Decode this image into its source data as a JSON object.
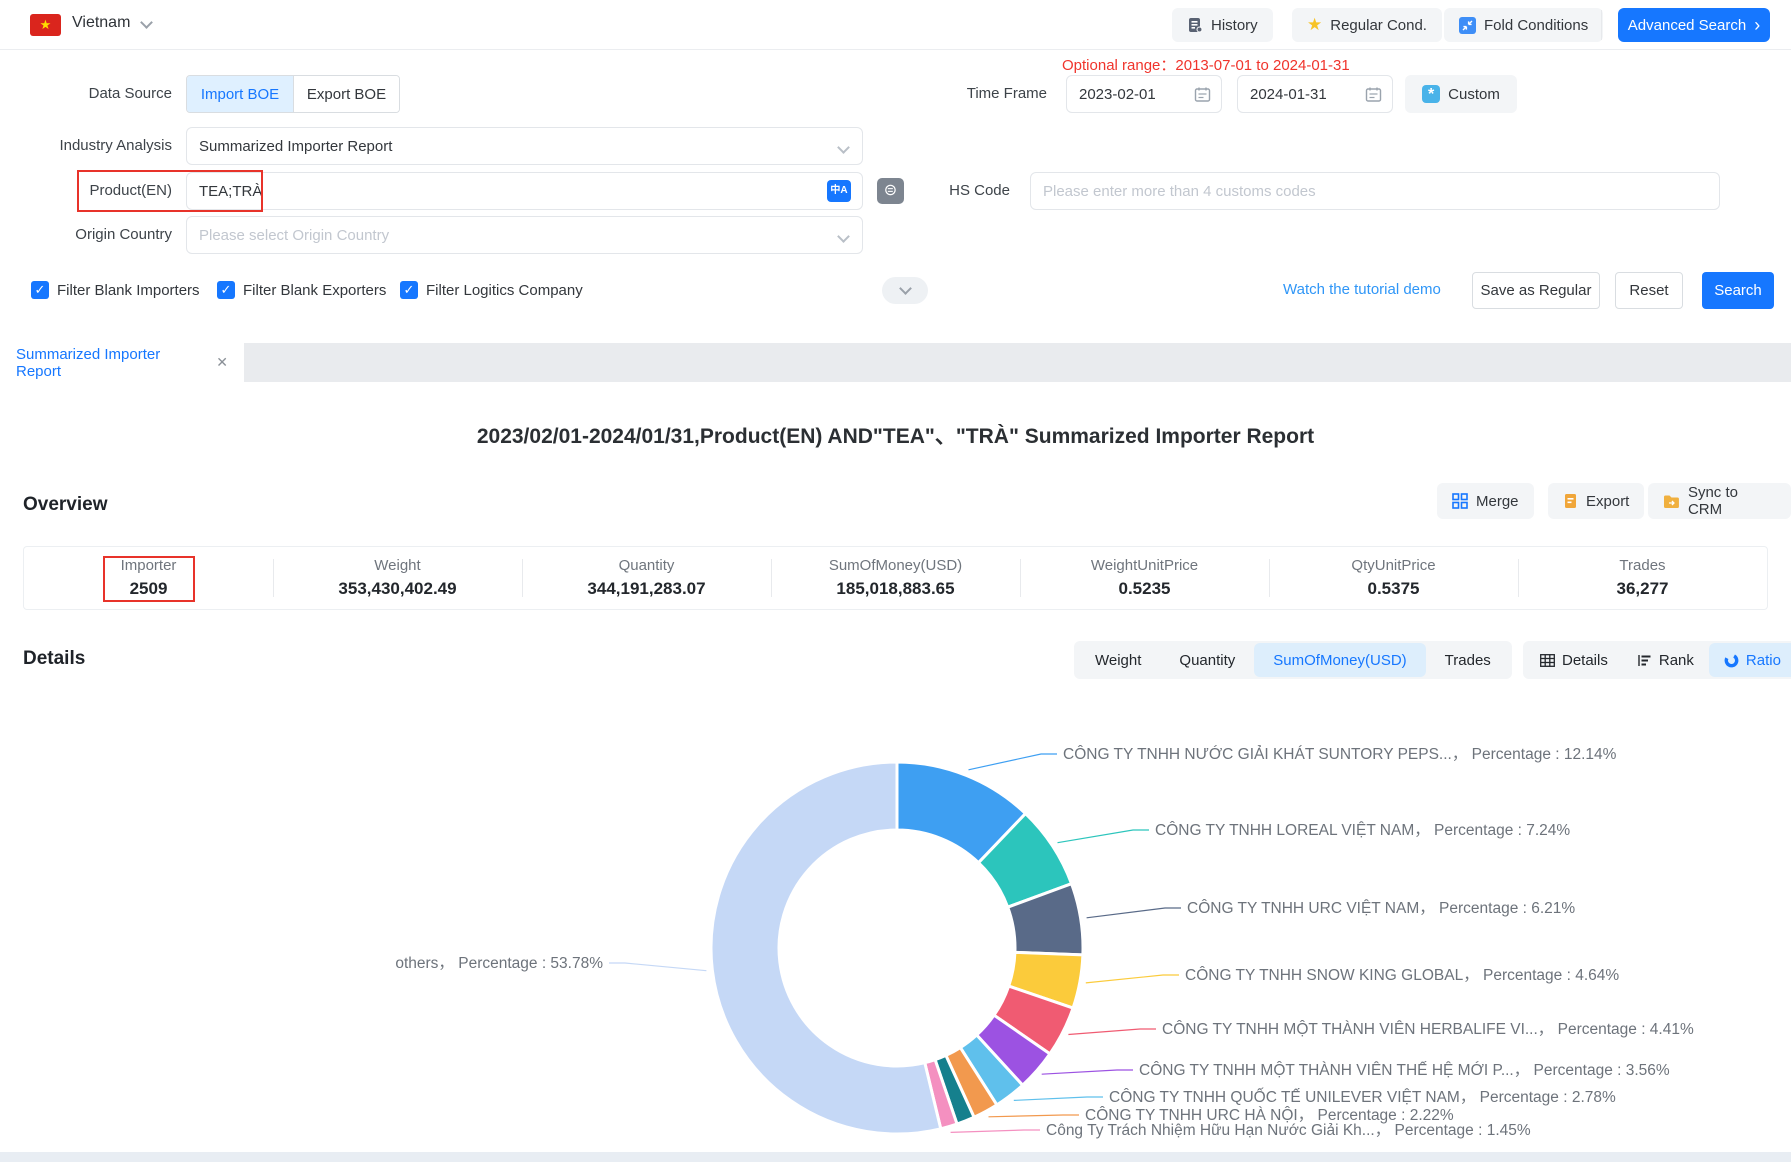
{
  "colors": {
    "accent": "#1677ff",
    "alert_red": "#e8332a",
    "optional_range_red": "#f0342c"
  },
  "icons": {
    "star": "★",
    "close": "✕",
    "check": "✓",
    "arrow_right": "›",
    "translate": "中A",
    "exact_match": "⊜",
    "custom_glyph": "*"
  },
  "topbar": {
    "country": "Vietnam",
    "history": "History",
    "regular_cond": "Regular Cond.",
    "fold_conditions": "Fold Conditions",
    "advanced_search": "Advanced Search"
  },
  "form": {
    "data_source_label": "Data Source",
    "import_boe": "Import BOE",
    "export_boe": "Export BOE",
    "optional_range": "Optional range：2013-07-01 to 2024-01-31",
    "time_frame_label": "Time Frame",
    "date_start": "2023-02-01",
    "date_end": "2024-01-31",
    "custom_label": "Custom",
    "industry_analysis_label": "Industry Analysis",
    "industry_analysis_value": "Summarized Importer Report",
    "product_label": "Product(EN)",
    "product_value": "TEA;TRÀ",
    "hs_code_label": "HS Code",
    "hs_code_placeholder": "Please enter more than 4 customs codes",
    "origin_country_label": "Origin Country",
    "origin_country_placeholder": "Please select Origin Country",
    "checkboxes": [
      "Filter Blank Importers",
      "Filter Blank Exporters",
      "Filter Logitics Company"
    ],
    "tutorial_link": "Watch the tutorial demo",
    "save_as_regular": "Save as Regular",
    "reset": "Reset",
    "search": "Search"
  },
  "tabs": {
    "active": "Summarized Importer Report"
  },
  "report": {
    "title": "2023/02/01-2024/01/31,Product(EN) AND\"TEA\"、\"TRÀ\" Summarized Importer Report",
    "overview_label": "Overview",
    "actions": {
      "merge": "Merge",
      "export": "Export",
      "sync_to_crm": "Sync to CRM"
    },
    "stats": [
      {
        "label": "Importer",
        "value": "2509"
      },
      {
        "label": "Weight",
        "value": "353,430,402.49"
      },
      {
        "label": "Quantity",
        "value": "344,191,283.07"
      },
      {
        "label": "SumOfMoney(USD)",
        "value": "185,018,883.65"
      },
      {
        "label": "WeightUnitPrice",
        "value": "0.5235"
      },
      {
        "label": "QtyUnitPrice",
        "value": "0.5375"
      },
      {
        "label": "Trades",
        "value": "36,277"
      }
    ],
    "details_label": "Details",
    "metric_tabs": [
      "Weight",
      "Quantity",
      "SumOfMoney(USD)",
      "Trades"
    ],
    "active_metric": "SumOfMoney(USD)",
    "view_tabs": [
      "Details",
      "Rank",
      "Ratio"
    ],
    "active_view": "Ratio"
  },
  "chart_data": {
    "type": "pie",
    "donut": true,
    "legend_position": "none",
    "label_prefix": "Percentage : ",
    "label_separator": "，  ",
    "series": [
      {
        "name": "CÔNG TY TNHH NƯỚC GIẢI KHÁT SUNTORY PEPS...",
        "value": 12.14,
        "color": "#3e9ff2"
      },
      {
        "name": "CÔNG TY TNHH LOREAL VIỆT NAM",
        "value": 7.24,
        "color": "#2cc5bc"
      },
      {
        "name": "CÔNG TY TNHH URC VIỆT NAM",
        "value": 6.21,
        "color": "#596a88"
      },
      {
        "name": "CÔNG TY TNHH SNOW KING GLOBAL",
        "value": 4.64,
        "color": "#fbcb3b"
      },
      {
        "name": "CÔNG TY TNHH MỘT THÀNH VIÊN HERBALIFE VI...",
        "value": 4.41,
        "color": "#f05b72"
      },
      {
        "name": "CÔNG TY TNHH MỘT THÀNH VIÊN THẾ HỆ MỚI P...",
        "value": 3.56,
        "color": "#9c52e2"
      },
      {
        "name": "CÔNG TY TNHH QUỐC TẾ UNILEVER VIỆT NAM",
        "value": 2.78,
        "color": "#5fc0ec"
      },
      {
        "name": "CÔNG TY TNHH URC HÀ NỘI",
        "value": 2.22,
        "color": "#f2994e"
      },
      {
        "name": "",
        "value": 1.57,
        "color": "#15808d"
      },
      {
        "name": "Công Ty Trách Nhiệm Hữu Hạn Nước Giải Kh...",
        "value": 1.45,
        "color": "#f490c0"
      },
      {
        "name": "others",
        "value": 53.78,
        "color": "#c5d8f6"
      }
    ]
  }
}
